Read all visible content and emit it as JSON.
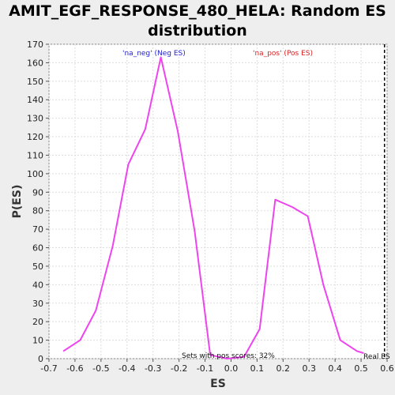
{
  "chart_data": {
    "type": "line",
    "title": "AMIT_EGF_RESPONSE_480_HELA: Random ES distribution",
    "xlabel": "ES",
    "ylabel": "P(ES)",
    "xlim": [
      -0.7,
      0.6
    ],
    "ylim": [
      0,
      170
    ],
    "x_ticks": [
      -0.7,
      -0.6,
      -0.5,
      -0.4,
      -0.3,
      -0.2,
      -0.1,
      0.0,
      0.1,
      0.2,
      0.3,
      0.4,
      0.5,
      0.6
    ],
    "x_tick_labels": [
      "-0.7",
      "-0.6",
      "-0.5",
      "-0.4",
      "-0.3",
      "-0.2",
      "-0.1",
      "0.0",
      "0.1",
      "0.2",
      "0.3",
      "0.4",
      "0.5",
      "0.6"
    ],
    "y_ticks": [
      0,
      10,
      20,
      30,
      40,
      50,
      60,
      70,
      80,
      90,
      100,
      110,
      120,
      130,
      140,
      150,
      160,
      170
    ],
    "grid": true,
    "line_color": "#ee44ee",
    "series": [
      {
        "x": [
          -0.645,
          -0.58,
          -0.52,
          -0.455,
          -0.395,
          -0.33,
          -0.27,
          -0.205,
          -0.14,
          -0.08,
          -0.015,
          0.05,
          0.11,
          0.17,
          0.235,
          0.295,
          0.355,
          0.42,
          0.485,
          0.51
        ],
        "values": [
          4,
          10,
          26,
          61,
          105,
          124,
          163,
          123,
          69,
          2,
          0,
          1,
          16,
          86,
          82,
          77,
          40,
          10,
          4,
          3
        ]
      }
    ],
    "annotations": {
      "neg_label": "'na_neg' (Neg ES)",
      "pos_label": "'na_pos' (Pos ES)",
      "pos_scores": "Sets with pos scores: 32%",
      "real_es": "Real ES"
    },
    "real_es_x": 0.59,
    "colors": {
      "neg": "#2222cc",
      "pos": "#dd2222",
      "real_es_line": "#000000"
    }
  }
}
